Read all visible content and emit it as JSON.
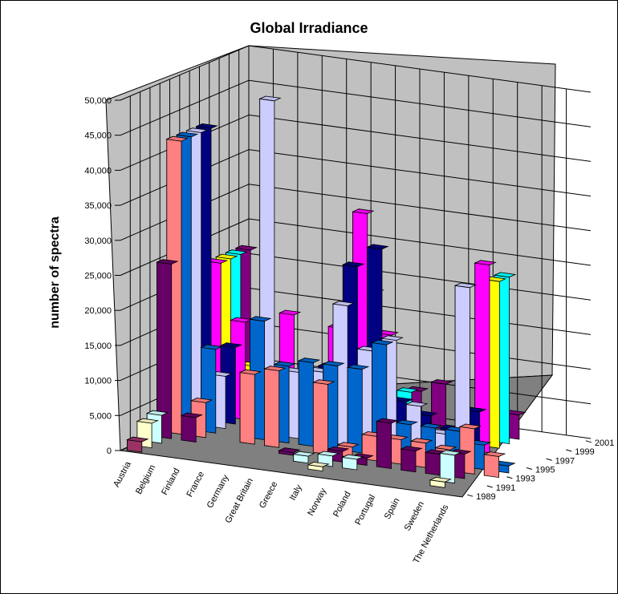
{
  "chart_data": {
    "type": "bar",
    "variant": "3d-column",
    "title": "Global Irradiance",
    "xlabel": "",
    "ylabel": "number of spectra",
    "categories": [
      "Austria",
      "Belgium",
      "Finland",
      "France",
      "Germany",
      "Great Britain",
      "Greece",
      "Italy",
      "Norway",
      "Poland",
      "Portugal",
      "Spain",
      "Sweden",
      "The Netherlands"
    ],
    "depth_ticks": [
      "1989",
      "1991",
      "1993",
      "1995",
      "1997",
      "1999",
      "2001"
    ],
    "y_ticks": [
      "0",
      "5,000",
      "10,000",
      "15,000",
      "20,000",
      "25,000",
      "30,000",
      "35,000",
      "40,000",
      "45,000",
      "50,000"
    ],
    "ylim": [
      0,
      50000
    ],
    "grid": true,
    "legend": "none",
    "series": [
      {
        "year": 1989,
        "color": "#993366",
        "values": [
          1500,
          0,
          0,
          0,
          0,
          0,
          0,
          0,
          0,
          0,
          0,
          0,
          0,
          0
        ]
      },
      {
        "year": 1990,
        "color": "#ffffcc",
        "values": [
          3500,
          0,
          0,
          0,
          0,
          0,
          0,
          600,
          0,
          0,
          0,
          0,
          800,
          0
        ]
      },
      {
        "year": 1991,
        "color": "#ccffff",
        "values": [
          4000,
          0,
          0,
          0,
          0,
          0,
          1000,
          1500,
          1500,
          0,
          0,
          0,
          4000,
          0
        ]
      },
      {
        "year": 1992,
        "color": "#660066",
        "values": [
          25000,
          3500,
          0,
          0,
          0,
          400,
          0,
          1500,
          1000,
          6500,
          3000,
          3000,
          3500,
          0
        ]
      },
      {
        "year": 1993,
        "color": "#ff8080",
        "values": [
          42000,
          5000,
          0,
          10000,
          11000,
          0,
          10000,
          1500,
          3500,
          3500,
          3500,
          3000,
          6500,
          3000
        ]
      },
      {
        "year": 1994,
        "color": "#0066cc",
        "values": [
          42000,
          12000,
          0,
          17000,
          11000,
          12000,
          12000,
          12000,
          16000,
          5000,
          5000,
          5000,
          3500,
          1000
        ]
      },
      {
        "year": 1995,
        "color": "#ccccff",
        "values": [
          42000,
          7500,
          0,
          48000,
          9500,
          10000,
          20000,
          14000,
          16000,
          7000,
          3500,
          25000,
          0,
          0
        ]
      },
      {
        "year": 1996,
        "color": "#000080",
        "values": [
          42000,
          11000,
          0,
          8500,
          0,
          10000,
          25000,
          28000,
          6500,
          5000,
          3500,
          6500,
          0,
          0
        ]
      },
      {
        "year": 1997,
        "color": "#ff00ff",
        "values": [
          22000,
          14000,
          0,
          16000,
          0,
          15000,
          32000,
          15000,
          4000,
          0,
          0,
          27000,
          0,
          0
        ]
      },
      {
        "year": 1998,
        "color": "#ffff00",
        "values": [
          22000,
          7000,
          0,
          0,
          0,
          17000,
          20000,
          0,
          0,
          0,
          0,
          24000,
          0,
          0
        ]
      },
      {
        "year": 1999,
        "color": "#00ffff",
        "values": [
          22000,
          0,
          0,
          0,
          0,
          0,
          6000,
          5500,
          0,
          0,
          0,
          24000,
          0,
          0
        ]
      },
      {
        "year": 2000,
        "color": "#800080",
        "values": [
          22000,
          0,
          0,
          0,
          0,
          0,
          0,
          5000,
          6500,
          0,
          0,
          3500,
          0,
          0
        ]
      },
      {
        "year": 2001,
        "color": "#800000",
        "values": [
          0,
          3000,
          0,
          0,
          0,
          0,
          0,
          0,
          0,
          0,
          0,
          0,
          0,
          0
        ]
      }
    ]
  }
}
